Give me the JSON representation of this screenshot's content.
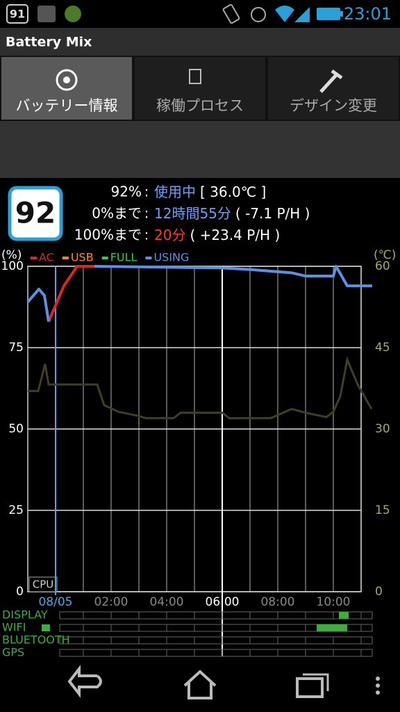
{
  "status_bar": {
    "badge": "91",
    "time": "23:01"
  },
  "app_title": "Battery Mix",
  "tabs": [
    "バッテリー情報",
    "稼働プロセス",
    "デザイン変更"
  ],
  "battery_icon": "92",
  "info": [
    [
      "92%",
      ":",
      "使用中",
      "[ 36.0℃ ]"
    ],
    [
      "0%まで",
      ":",
      "12時間55分",
      "( -7.1 P/H )"
    ],
    [
      "100%まで",
      ":",
      "20分",
      "( +23.4 P/H )"
    ]
  ],
  "chart_data": {
    "type": "line",
    "y_label": "(%)",
    "y2_label": "(℃)",
    "corner_label": "CPU",
    "x": [
      -1,
      -0.6,
      -0.4,
      -0.25,
      0,
      0.3,
      0.7,
      0.75,
      1.4,
      6,
      7,
      8.5,
      9,
      10,
      10.1,
      10.5,
      11.4
    ],
    "xlim": [
      -1,
      11.4
    ],
    "xticks": [
      {
        "value": 0,
        "label": "08/05"
      },
      {
        "value": 2,
        "label": "02:00"
      },
      {
        "value": 4,
        "label": "04:00"
      },
      {
        "value": 6,
        "label": "06:00"
      },
      {
        "value": 8,
        "label": "08:00"
      },
      {
        "value": 10,
        "label": "10:00"
      }
    ],
    "x_minor_grid": [
      1,
      3,
      5,
      7,
      9,
      11
    ],
    "cursor_x": 0,
    "highlight_x": 6,
    "ylim": [
      0,
      100
    ],
    "yticks": [
      0,
      25,
      50,
      75,
      100
    ],
    "y2lim": [
      0,
      60
    ],
    "y2ticks": [
      0,
      15,
      30,
      45,
      60
    ],
    "series": [
      {
        "name": "AC",
        "color": "#e02424",
        "values": [
          null,
          null,
          null,
          83,
          88,
          94,
          99,
          100,
          100,
          null,
          null,
          null,
          null,
          null,
          null,
          null,
          null
        ]
      },
      {
        "name": "USB",
        "color": "#ff8a24",
        "values": [
          null,
          null,
          null,
          null,
          null,
          null,
          null,
          null,
          null,
          null,
          null,
          null,
          null,
          null,
          null,
          null,
          null
        ]
      },
      {
        "name": "FULL",
        "color": "#34d034",
        "values": [
          null,
          null,
          null,
          null,
          null,
          null,
          null,
          null,
          null,
          null,
          null,
          null,
          null,
          null,
          null,
          null,
          null
        ]
      },
      {
        "name": "USING",
        "color": "#5b8fe8",
        "values": [
          89,
          93,
          91,
          83,
          null,
          null,
          null,
          null,
          100,
          99.5,
          99,
          98,
          97,
          97,
          100,
          94,
          94
        ]
      }
    ],
    "temperature": {
      "axis": "y2",
      "color": "#403f26",
      "x": [
        -1,
        -0.625,
        -0.375,
        -0.25,
        1.5,
        1.75,
        2.25,
        3,
        3.25,
        4.25,
        4.5,
        6,
        6.25,
        7.75,
        8.5,
        9,
        9.75,
        10,
        10.25,
        10.5,
        10.875,
        11.375
      ],
      "values": [
        37,
        37,
        42,
        38.2,
        38.2,
        34.4,
        33.2,
        32.4,
        32,
        32,
        33,
        33,
        32,
        32,
        33.7,
        33,
        32.2,
        33.2,
        36,
        42.8,
        38.2,
        33.7
      ]
    }
  },
  "activity": [
    {
      "label": "DISPLAY",
      "spans": [
        [
          10.2,
          10.55
        ]
      ]
    },
    {
      "label": "WIFI",
      "spans": [
        [
          -0.5,
          -0.2
        ],
        [
          9.4,
          10.5
        ]
      ]
    },
    {
      "label": "BLUETOOTH",
      "spans": []
    },
    {
      "label": "GPS",
      "spans": []
    }
  ]
}
